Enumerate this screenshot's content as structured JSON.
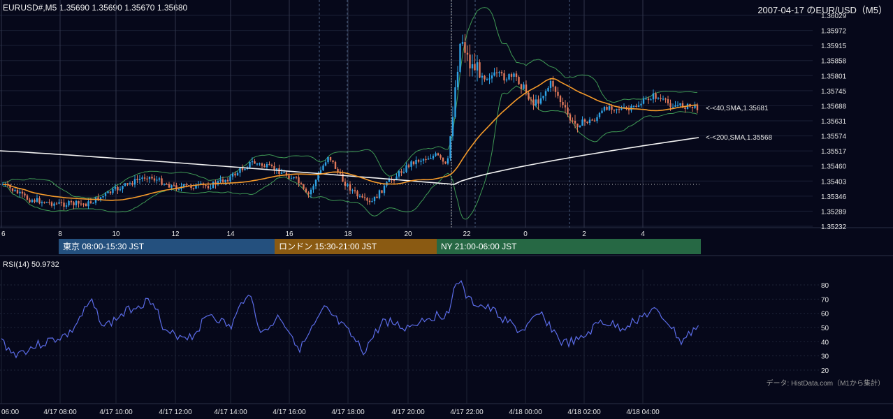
{
  "header": {
    "symbol_info": "EURUSD#,M5 1.35690 1.35690 1.35670 1.35680",
    "date_title": "2007-04-17 のEUR/USD（M5）"
  },
  "price_axis": {
    "ticks": [
      "1.36029",
      "1.35972",
      "1.35915",
      "1.35858",
      "1.35801",
      "1.35745",
      "1.35688",
      "1.35631",
      "1.35574",
      "1.35517",
      "1.35460",
      "1.35403",
      "1.35346",
      "1.35289",
      "1.35232"
    ]
  },
  "hour_axis": {
    "labels": [
      "6",
      "8",
      "10",
      "12",
      "14",
      "16",
      "18",
      "20",
      "22",
      "0",
      "2",
      "4"
    ]
  },
  "sma_labels": {
    "sma40": "<-<40,SMA,1.35681",
    "sma200": "<-<200,SMA,1.35568"
  },
  "sessions": [
    {
      "label": "東京 08:00-15:30 JST",
      "color": "#24507e"
    },
    {
      "label": "ロンドン 15:30-21:00 JST",
      "color": "#8a5a12"
    },
    {
      "label": "NY 21:00-06:00 JST",
      "color": "#266844"
    }
  ],
  "rsi": {
    "title": "RSI(14) 50.9732",
    "ticks": [
      "80",
      "70",
      "60",
      "50",
      "40",
      "30",
      "20"
    ]
  },
  "source_note": "データ: HistData.com（M1から集計）",
  "time_axis": {
    "labels": [
      "06:00",
      "4/17 08:00",
      "4/17 10:00",
      "4/17 12:00",
      "4/17 14:00",
      "4/17 16:00",
      "4/17 18:00",
      "4/17 20:00",
      "4/17 22:00",
      "4/18 00:00",
      "4/18 02:00",
      "4/18 04:00"
    ]
  },
  "colors": {
    "background": "#06081a",
    "bull": "#2ea3e6",
    "bear": "#e0785a",
    "sma40": "#f59a2a",
    "sma200": "#f2f2f2",
    "bollinger": "#3f9a55",
    "rsi_line": "#5b6ce8"
  }
}
